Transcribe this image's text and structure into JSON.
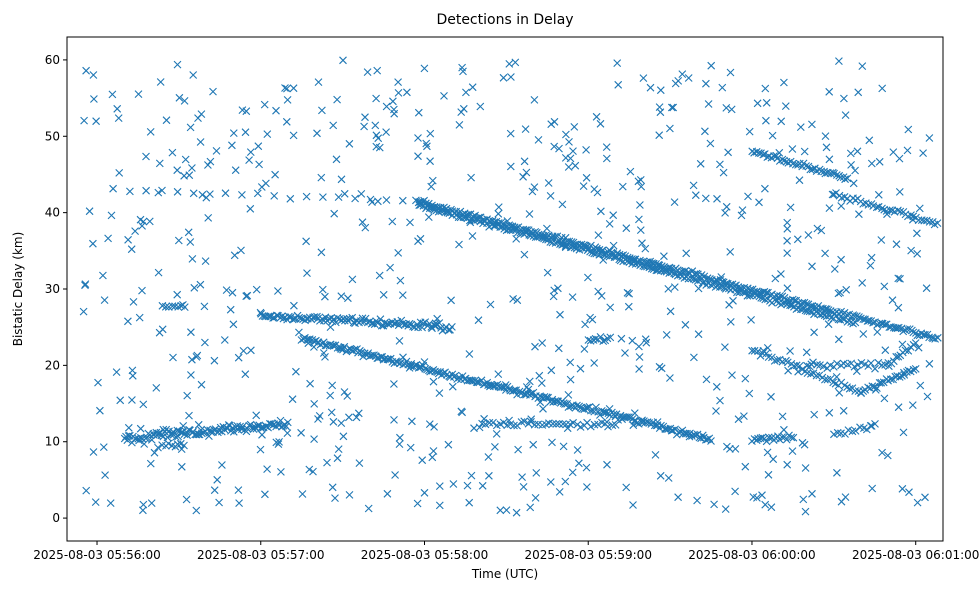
{
  "chart_data": {
    "type": "scatter",
    "title": "Detections in Delay",
    "xlabel": "Time (UTC)",
    "ylabel": "Bistatic Delay (km)",
    "marker": "x",
    "color": "#1f77b4",
    "grid": false,
    "x_start": "2025-08-03 05:55:49",
    "x_end": "2025-08-03 06:01:10",
    "x_ticks": [
      "2025-08-03 05:56:00",
      "2025-08-03 05:57:00",
      "2025-08-03 05:58:00",
      "2025-08-03 05:59:00",
      "2025-08-03 06:00:00",
      "2025-08-03 06:01:00"
    ],
    "ylim": [
      -3,
      63
    ],
    "y_ticks": [
      0,
      10,
      20,
      30,
      40,
      50,
      60
    ],
    "tracks": [
      {
        "start": "2025-08-03 05:56:06",
        "end": "2025-08-03 05:57:58",
        "delay_start": 43.0,
        "delay_end": 41.5,
        "count": 20,
        "jitter": 0.3
      },
      {
        "start": "2025-08-03 05:57:57",
        "end": "2025-08-03 06:01:08",
        "delay_start": 41.5,
        "delay_end": 23.5,
        "count": 260,
        "jitter": 0.25
      },
      {
        "start": "2025-08-03 05:57:58",
        "end": "2025-08-03 06:00:38",
        "delay_start": 41.0,
        "delay_end": 25.5,
        "count": 200,
        "jitter": 0.25
      },
      {
        "start": "2025-08-03 06:00:00",
        "end": "2025-08-03 06:00:35",
        "delay_start": 48.0,
        "delay_end": 44.5,
        "count": 45,
        "jitter": 0.3
      },
      {
        "start": "2025-08-03 06:00:30",
        "end": "2025-08-03 06:01:08",
        "delay_start": 42.5,
        "delay_end": 38.5,
        "count": 40,
        "jitter": 0.3
      },
      {
        "start": "2025-08-03 05:56:10",
        "end": "2025-08-03 05:57:10",
        "delay_start": 10.3,
        "delay_end": 12.3,
        "count": 110,
        "jitter": 0.6
      },
      {
        "start": "2025-08-03 05:57:00",
        "end": "2025-08-03 05:58:10",
        "delay_start": 26.5,
        "delay_end": 25.0,
        "count": 110,
        "jitter": 0.4
      },
      {
        "start": "2025-08-03 05:57:15",
        "end": "2025-08-03 05:59:45",
        "delay_start": 23.5,
        "delay_end": 10.3,
        "count": 240,
        "jitter": 0.35
      },
      {
        "start": "2025-08-03 05:58:20",
        "end": "2025-08-03 05:59:10",
        "delay_start": 12.3,
        "delay_end": 12.3,
        "count": 40,
        "jitter": 0.3
      },
      {
        "start": "2025-08-03 06:00:00",
        "end": "2025-08-03 06:00:15",
        "delay_start": 10.3,
        "delay_end": 10.6,
        "count": 20,
        "jitter": 0.3
      },
      {
        "start": "2025-08-03 06:00:00",
        "end": "2025-08-03 06:00:40",
        "delay_start": 22.0,
        "delay_end": 16.5,
        "count": 40,
        "jitter": 0.3
      },
      {
        "start": "2025-08-03 06:00:20",
        "end": "2025-08-03 06:00:50",
        "delay_start": 20.0,
        "delay_end": 20.0,
        "count": 25,
        "jitter": 0.4
      },
      {
        "start": "2025-08-03 06:00:30",
        "end": "2025-08-03 06:00:45",
        "delay_start": 11.0,
        "delay_end": 12.0,
        "count": 12,
        "jitter": 0.3
      },
      {
        "start": "2025-08-03 06:00:40",
        "end": "2025-08-03 06:01:00",
        "delay_start": 16.5,
        "delay_end": 19.5,
        "count": 25,
        "jitter": 0.3
      },
      {
        "start": "2025-08-03 06:00:50",
        "end": "2025-08-03 06:01:00",
        "delay_start": 20.0,
        "delay_end": 23.0,
        "count": 12,
        "jitter": 0.3
      },
      {
        "start": "2025-08-03 05:56:24",
        "end": "2025-08-03 05:56:32",
        "delay_start": 27.7,
        "delay_end": 27.7,
        "count": 8,
        "jitter": 0.2
      },
      {
        "start": "2025-08-03 05:56:24",
        "end": "2025-08-03 05:56:32",
        "delay_start": 9.5,
        "delay_end": 9.5,
        "count": 8,
        "jitter": 0.2
      },
      {
        "start": "2025-08-03 05:59:00",
        "end": "2025-08-03 05:59:08",
        "delay_start": 23.5,
        "delay_end": 23.5,
        "count": 10,
        "jitter": 0.3
      }
    ],
    "background_noise": {
      "count": 700,
      "delay_min": 0.5,
      "delay_max": 60.0,
      "seed": 7
    }
  }
}
